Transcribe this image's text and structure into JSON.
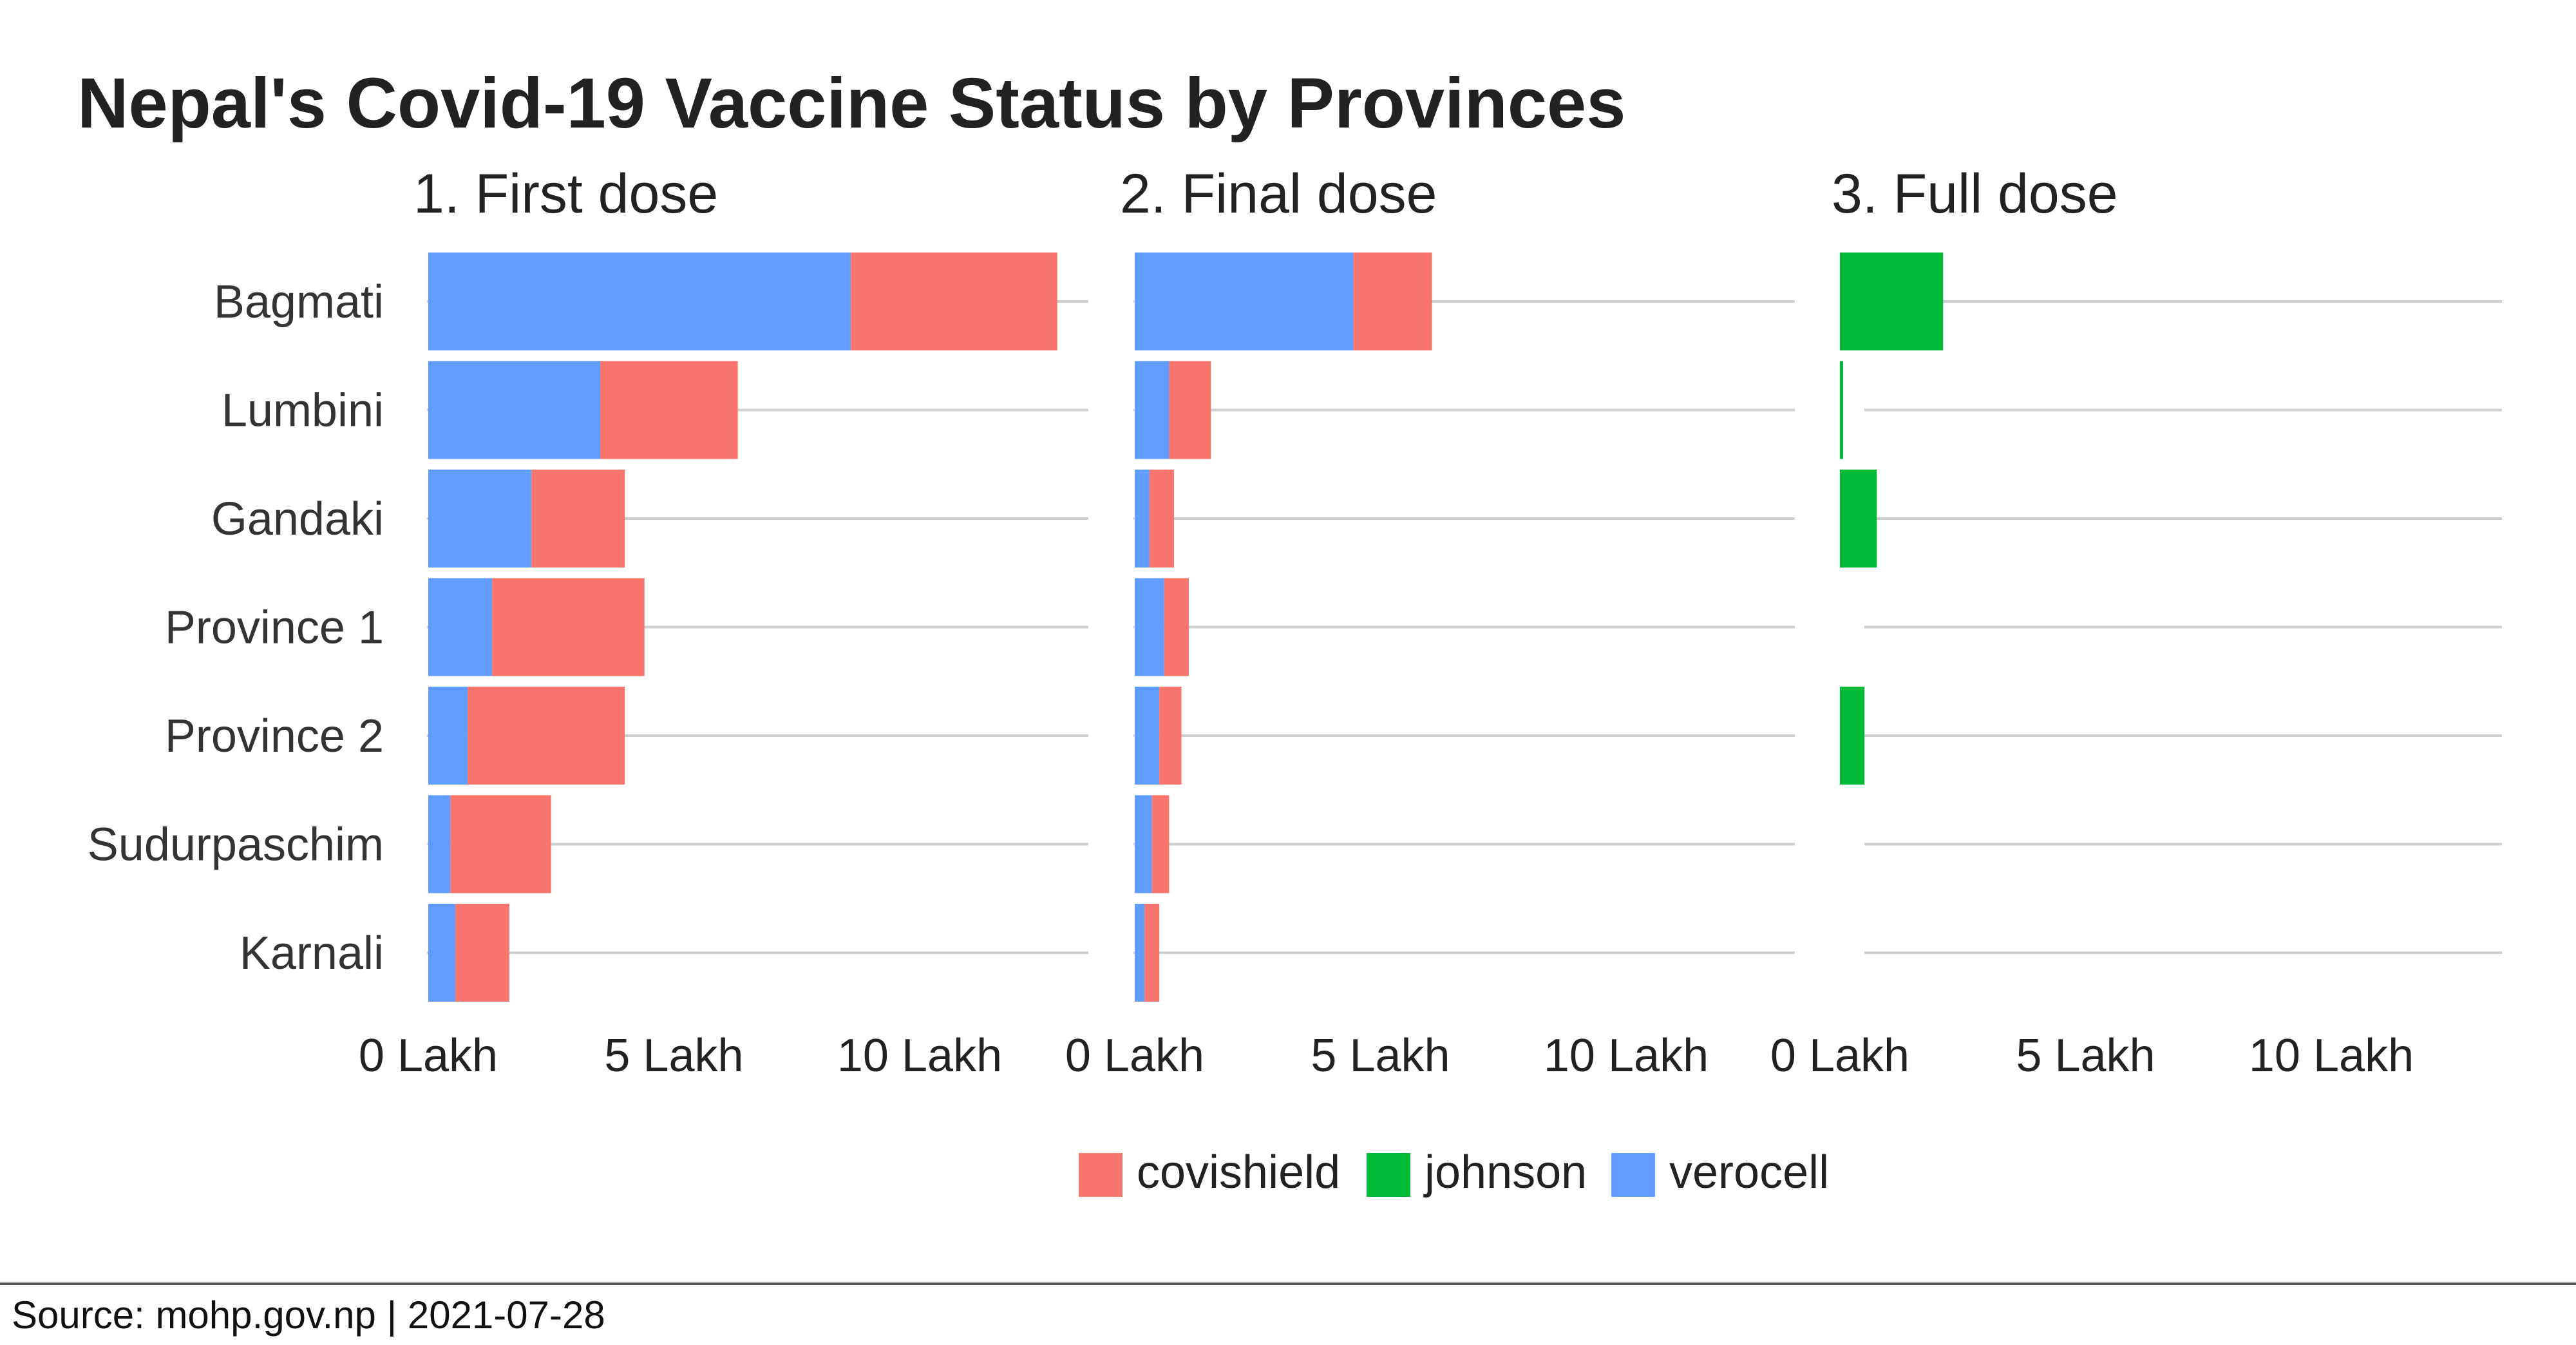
{
  "chart_data": {
    "type": "bar",
    "orientation": "horizontal",
    "stacked": true,
    "title": "Nepal's Covid-19 Vaccine Status by Provinces",
    "categories": [
      "Bagmati",
      "Lumbini",
      "Gandaki",
      "Province 1",
      "Province 2",
      "Sudurpaschim",
      "Karnali"
    ],
    "xlim": [
      0,
      14
    ],
    "x_ticks": [
      0,
      5,
      10
    ],
    "x_tick_labels": [
      "0 Lakh",
      "5 Lakh",
      "10 Lakh"
    ],
    "grid": true,
    "legend_position": "bottom",
    "colors": {
      "covishield": "#F8766D",
      "johnson": "#00BA38",
      "verocell": "#619CFF"
    },
    "legend": [
      "covishield",
      "johnson",
      "verocell"
    ],
    "panels": [
      {
        "title": "1. First dose",
        "series": [
          {
            "name": "verocell",
            "values": [
              8.6,
              3.5,
              2.1,
              1.3,
              0.8,
              0.45,
              0.55
            ]
          },
          {
            "name": "covishield",
            "values": [
              4.2,
              2.8,
              1.9,
              3.1,
              3.2,
              2.05,
              1.1
            ]
          }
        ]
      },
      {
        "title": "2. Final dose",
        "series": [
          {
            "name": "verocell",
            "values": [
              4.45,
              0.7,
              0.3,
              0.6,
              0.5,
              0.35,
              0.2
            ]
          },
          {
            "name": "covishield",
            "values": [
              1.6,
              0.85,
              0.5,
              0.5,
              0.45,
              0.35,
              0.3
            ]
          }
        ]
      },
      {
        "title": "3. Full dose",
        "series": [
          {
            "name": "johnson",
            "values": [
              2.1,
              0.05,
              0.75,
              0,
              0.5,
              0,
              0
            ]
          }
        ]
      }
    ]
  },
  "source": "Source: mohp.gov.np |  2021-07-28"
}
